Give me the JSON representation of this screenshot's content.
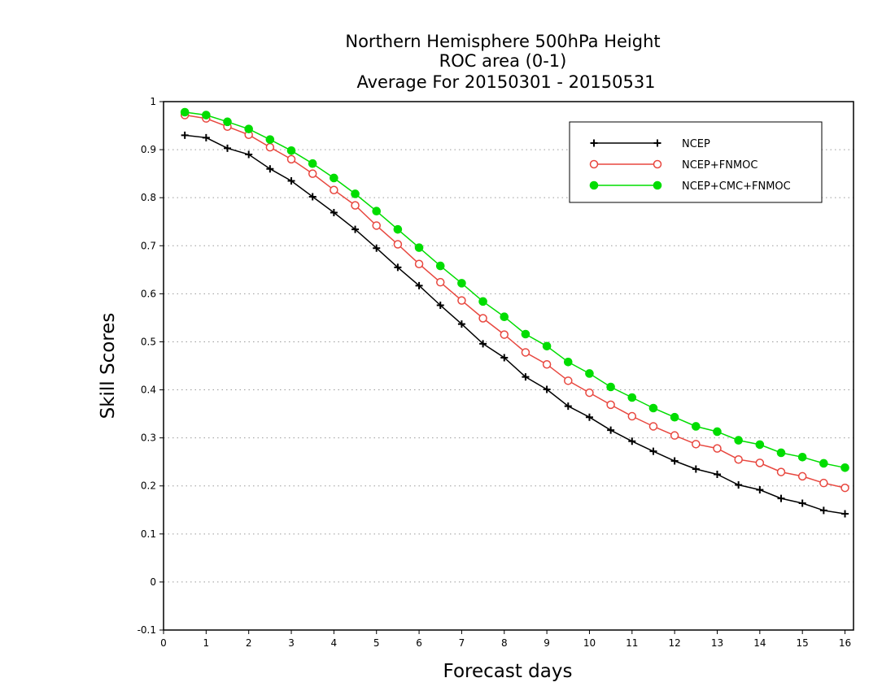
{
  "chart_data": {
    "type": "line",
    "title": [
      "Northern Hemisphere 500hPa Height",
      "ROC area (0-1)",
      "Average For 20150301 - 20150531"
    ],
    "xlabel": "Forecast days",
    "ylabel": "Skill Scores",
    "xlim": [
      0,
      16.2
    ],
    "ylim": [
      -0.1,
      1
    ],
    "x_ticks": [
      0,
      1,
      2,
      3,
      4,
      5,
      6,
      7,
      8,
      9,
      10,
      11,
      12,
      13,
      14,
      15,
      16
    ],
    "y_ticks": [
      -0.1,
      0,
      0.1,
      0.2,
      0.3,
      0.4,
      0.5,
      0.6,
      0.7,
      0.8,
      0.9,
      1
    ],
    "y_tick_labels": [
      "-0.1",
      "0",
      "0.1",
      "0.2",
      "0.3",
      "0.4",
      "0.5",
      "0.6",
      "0.7",
      "0.8",
      "0.9",
      "1"
    ],
    "grid": "horizontal dotted",
    "legend_position": "top-right",
    "x": [
      0.5,
      1,
      1.5,
      2,
      2.5,
      3,
      3.5,
      4,
      4.5,
      5,
      5.5,
      6,
      6.5,
      7,
      7.5,
      8,
      8.5,
      9,
      9.5,
      10,
      10.5,
      11,
      11.5,
      12,
      12.5,
      13,
      13.5,
      14,
      14.5,
      15,
      15.5,
      16
    ],
    "series": [
      {
        "name": "NCEP",
        "color": "#000000",
        "marker": "plus",
        "values": [
          0.93,
          0.925,
          0.903,
          0.89,
          0.86,
          0.835,
          0.802,
          0.769,
          0.734,
          0.695,
          0.655,
          0.617,
          0.576,
          0.537,
          0.496,
          0.467,
          0.427,
          0.401,
          0.366,
          0.343,
          0.316,
          0.293,
          0.272,
          0.252,
          0.235,
          0.224,
          0.202,
          0.192,
          0.174,
          0.164,
          0.149,
          0.142
        ]
      },
      {
        "name": "NCEP+FNMOC",
        "color": "#e8473f",
        "marker": "open-circle",
        "values": [
          0.972,
          0.965,
          0.948,
          0.931,
          0.905,
          0.88,
          0.85,
          0.816,
          0.784,
          0.742,
          0.703,
          0.662,
          0.624,
          0.586,
          0.549,
          0.515,
          0.478,
          0.453,
          0.419,
          0.394,
          0.369,
          0.345,
          0.324,
          0.305,
          0.287,
          0.278,
          0.255,
          0.248,
          0.229,
          0.22,
          0.206,
          0.196
        ]
      },
      {
        "name": "NCEP+CMC+FNMOC",
        "color": "#00dd00",
        "marker": "filled-circle",
        "values": [
          0.978,
          0.972,
          0.958,
          0.943,
          0.921,
          0.898,
          0.871,
          0.841,
          0.808,
          0.772,
          0.734,
          0.696,
          0.658,
          0.622,
          0.584,
          0.552,
          0.516,
          0.491,
          0.458,
          0.434,
          0.406,
          0.384,
          0.362,
          0.343,
          0.324,
          0.313,
          0.295,
          0.286,
          0.269,
          0.26,
          0.247,
          0.238
        ]
      }
    ]
  }
}
